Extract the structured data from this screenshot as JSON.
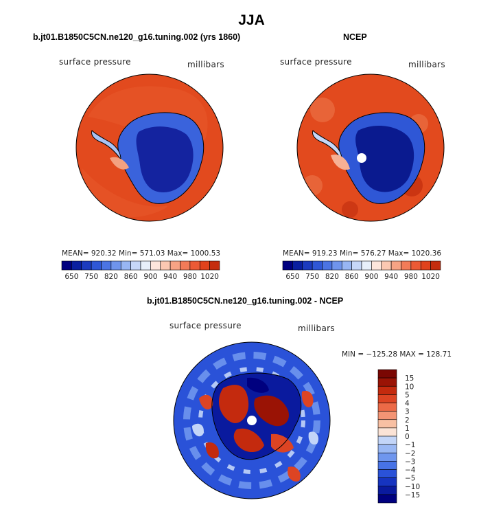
{
  "main_title": "JJA",
  "colors": {
    "blue_scale": [
      "#00007f",
      "#0a1fa0",
      "#1c3bbf",
      "#2f57d6",
      "#4b74e3",
      "#6f94ec",
      "#98b6f3",
      "#c6d7f8",
      "#e8f0fb"
    ],
    "red_scale": [
      "#fde6dc",
      "#fbc8b2",
      "#f7a384",
      "#f27b58",
      "#ec5a35",
      "#e0421c",
      "#c52d0e",
      "#9f1706",
      "#7a0a03"
    ],
    "diff_scale": [
      "#00007f",
      "#0a1a9e",
      "#1634c0",
      "#2a52d8",
      "#4773e6",
      "#6f96ee",
      "#9ab8f4",
      "#c3d5f8",
      "#e6eefb",
      "#fbe3d6",
      "#f8c0a3",
      "#f39474",
      "#ec6a47",
      "#dd4423",
      "#c42a0e",
      "#9a1305",
      "#7a0703"
    ],
    "fill_red": "#e44a1f",
    "fill_blue": "#1f3fc7"
  },
  "panels": [
    {
      "title": "b.jt01.B1850C5CN.ne120_g16.tuning.002 (yrs 1860)",
      "variable": "surface pressure",
      "units": "millibars",
      "stats": "MEAN= 920.32   Min= 571.03   Max= 1000.53",
      "colorbar_labels": [
        "650",
        "750",
        "820",
        "860",
        "900",
        "940",
        "980",
        "1020"
      ]
    },
    {
      "title": "NCEP",
      "variable": "surface pressure",
      "units": "millibars",
      "stats": "MEAN= 919.23   Min= 576.27   Max= 1020.36",
      "colorbar_labels": [
        "650",
        "750",
        "820",
        "860",
        "900",
        "940",
        "980",
        "1020"
      ]
    }
  ],
  "diff_panel": {
    "title": "b.jt01.B1850C5CN.ne120_g16.tuning.002 - NCEP",
    "variable": "surface pressure",
    "units": "millibars",
    "stats": "MIN = −125.28  MAX = 128.71",
    "colorbar_labels": [
      "15",
      "10",
      "5",
      "4",
      "3",
      "2",
      "1",
      "0",
      "−1",
      "−2",
      "−3",
      "−4",
      "−5",
      "−10",
      "−15"
    ]
  },
  "chart_data": [
    {
      "type": "heatmap",
      "title": "b.jt01.B1850C5CN.ne120_g16.tuning.002 (yrs 1860)",
      "variable": "surface pressure",
      "units": "millibars",
      "projection": "south polar stereographic",
      "mean": 920.32,
      "min": 571.03,
      "max": 1000.53,
      "contour_levels": [
        650,
        700,
        750,
        780,
        820,
        840,
        860,
        880,
        900,
        920,
        940,
        960,
        980,
        1000,
        1020
      ]
    },
    {
      "type": "heatmap",
      "title": "NCEP",
      "variable": "surface pressure",
      "units": "millibars",
      "projection": "south polar stereographic",
      "mean": 919.23,
      "min": 576.27,
      "max": 1020.36,
      "contour_levels": [
        650,
        700,
        750,
        780,
        820,
        840,
        860,
        880,
        900,
        920,
        940,
        960,
        980,
        1000,
        1020
      ]
    },
    {
      "type": "heatmap",
      "title": "b.jt01.B1850C5CN.ne120_g16.tuning.002 - NCEP",
      "variable": "surface pressure",
      "units": "millibars",
      "projection": "south polar stereographic",
      "min": -125.28,
      "max": 128.71,
      "contour_levels": [
        -15,
        -10,
        -5,
        -4,
        -3,
        -2,
        -1,
        0,
        1,
        2,
        3,
        4,
        5,
        10,
        15
      ]
    }
  ]
}
